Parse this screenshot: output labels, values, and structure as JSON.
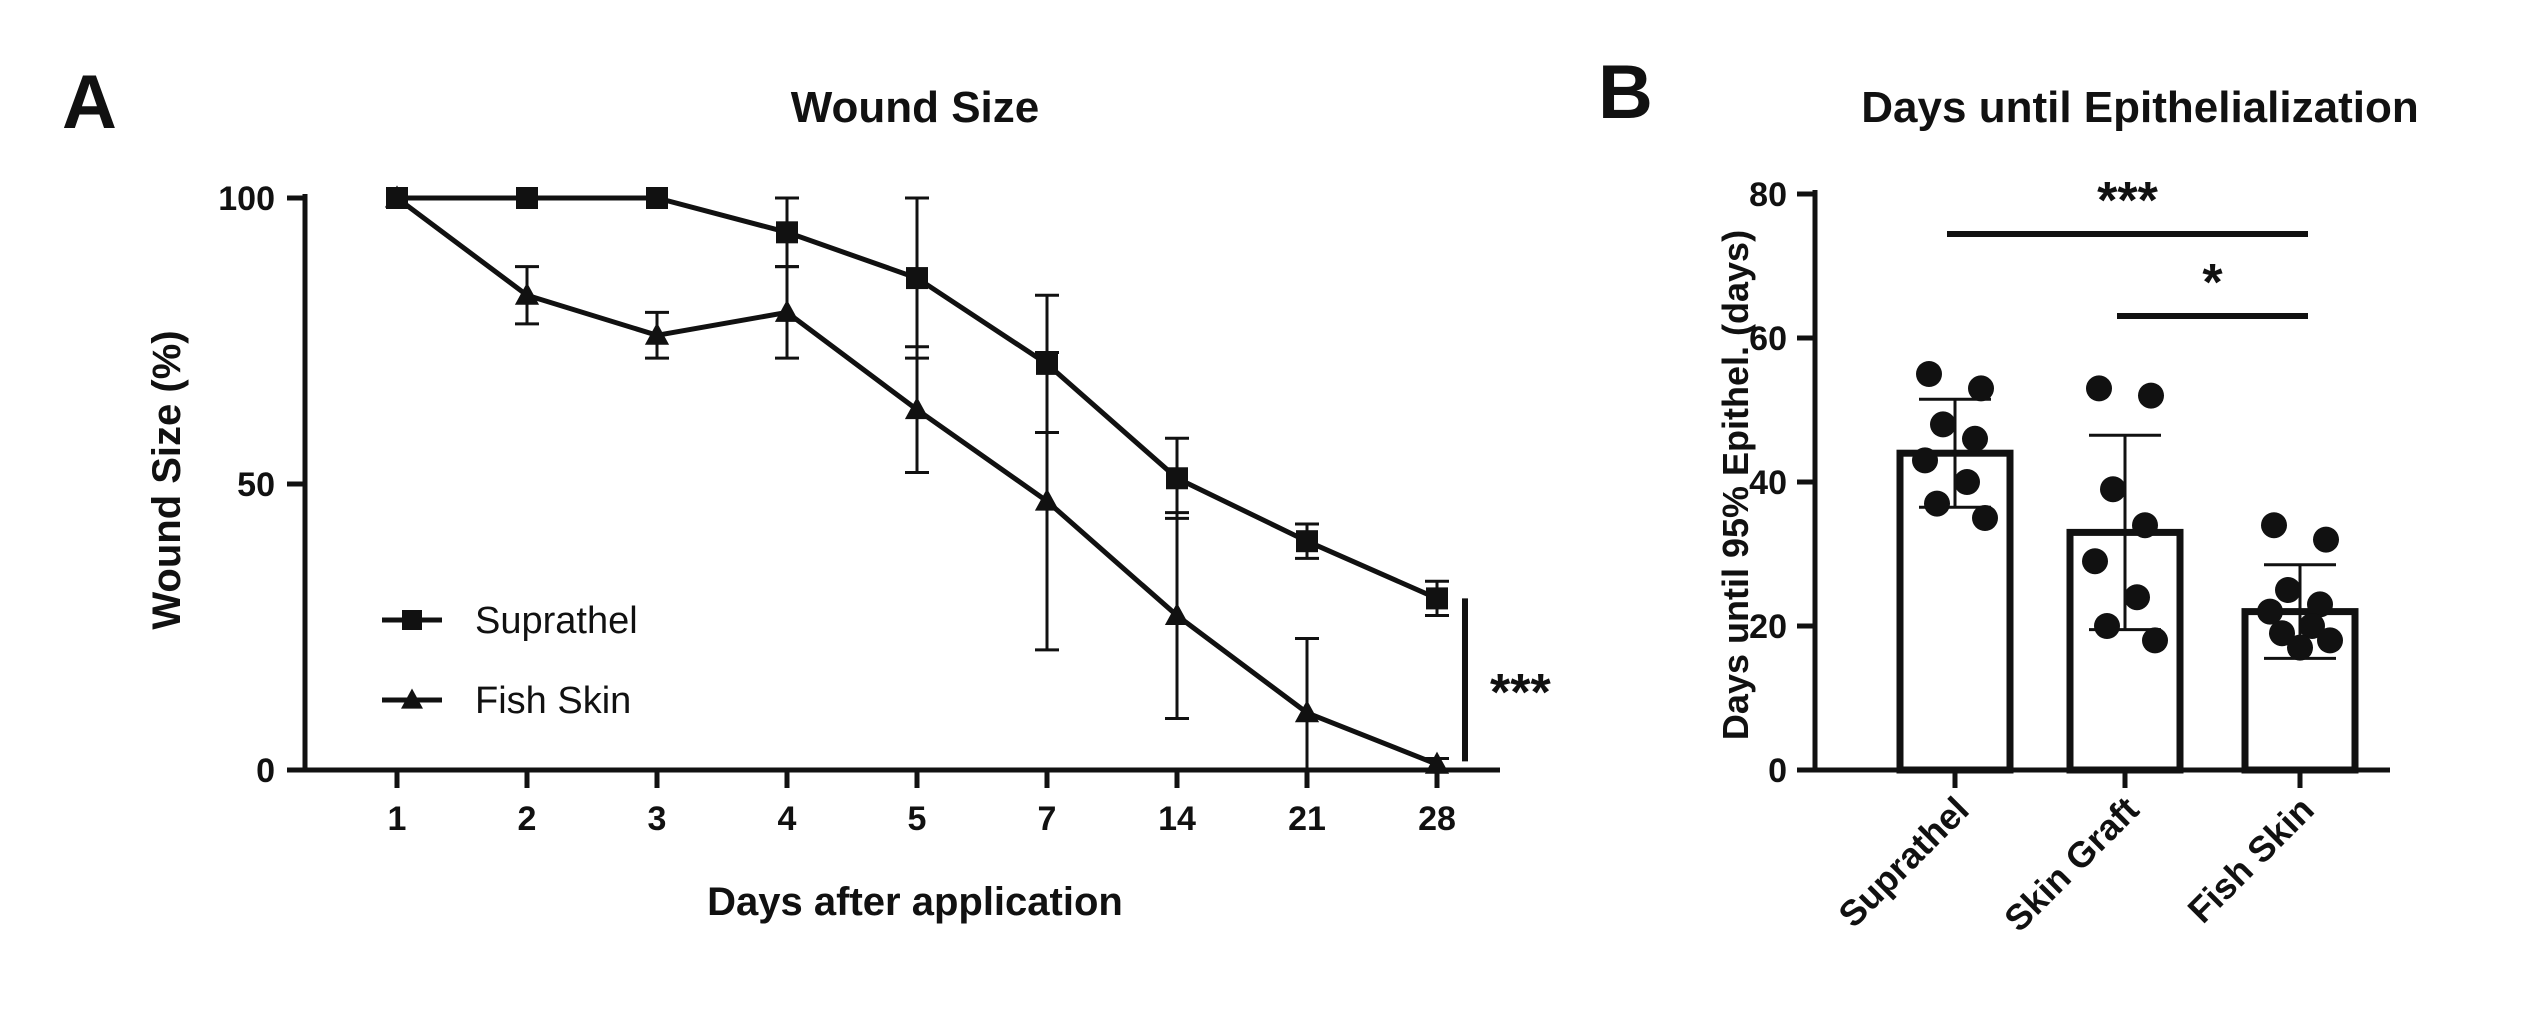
{
  "chart_data": [
    {
      "panel": "A",
      "type": "line",
      "title": "Wound Size",
      "xlabel": "Days after application",
      "ylabel": "Wound Size (%)",
      "categories": [
        "1",
        "2",
        "3",
        "4",
        "5",
        "7",
        "14",
        "21",
        "28"
      ],
      "yticks": [
        0,
        50,
        100
      ],
      "ylim": [
        0,
        100
      ],
      "series": [
        {
          "name": "Suprathel",
          "marker": "square",
          "values": [
            100,
            100,
            100,
            94,
            86,
            71,
            51,
            40,
            30
          ],
          "errors": [
            0,
            0,
            0,
            6,
            14,
            12,
            7,
            3,
            3
          ]
        },
        {
          "name": "Fish Skin",
          "marker": "triangle",
          "values": [
            100,
            83,
            76,
            80,
            63,
            47,
            27,
            10,
            1
          ],
          "errors": [
            0,
            5,
            4,
            8,
            11,
            26,
            18,
            13,
            1
          ]
        }
      ],
      "legend_position": "lower-left",
      "significance": "***"
    },
    {
      "panel": "B",
      "type": "bar",
      "title": "Days until Epithelialization",
      "ylabel": "Days until 95% Epithel. (days)",
      "categories": [
        "Suprathel",
        "Skin Graft",
        "Fish Skin"
      ],
      "values": [
        44,
        33,
        22
      ],
      "sd": [
        7.5,
        13.5,
        6.5
      ],
      "points": [
        [
          55,
          53,
          48,
          46,
          43,
          40,
          37,
          35
        ],
        [
          53,
          52,
          39,
          34,
          29,
          24,
          20,
          18
        ],
        [
          34,
          32,
          25,
          23,
          22,
          20,
          19,
          18,
          17
        ]
      ],
      "yticks": [
        0,
        20,
        40,
        60,
        80
      ],
      "ylim": [
        0,
        80
      ],
      "significance": [
        {
          "from": 0,
          "to": 2,
          "label": "***"
        },
        {
          "from": 1,
          "to": 2,
          "label": "*"
        }
      ]
    }
  ]
}
